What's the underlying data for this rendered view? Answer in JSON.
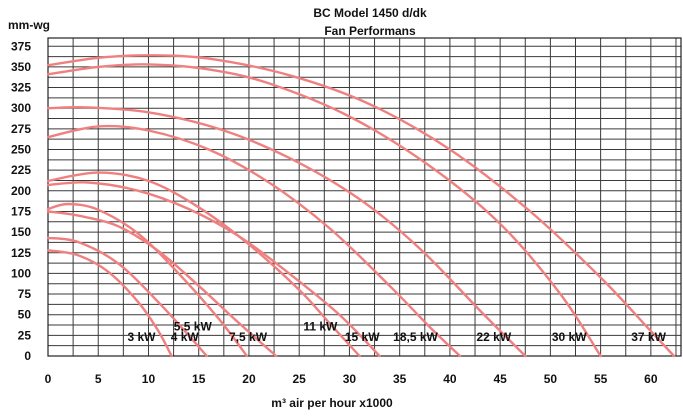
{
  "chart_data": {
    "type": "line",
    "title": "BC Model 1450 d/dk",
    "subtitle": "Fan Performans",
    "xlabel": "m³ air per hour x1000",
    "ylabel": "mm-wg",
    "xlim": [
      0,
      63
    ],
    "ylim": [
      0,
      385
    ],
    "x_ticks": [
      0,
      5,
      10,
      15,
      20,
      25,
      30,
      35,
      40,
      45,
      50,
      55,
      60
    ],
    "y_ticks": [
      0,
      25,
      50,
      75,
      100,
      125,
      150,
      175,
      200,
      225,
      250,
      275,
      300,
      325,
      350,
      375
    ],
    "grid": true,
    "curve_color": "#f08080",
    "series": [
      {
        "name": "3 kW",
        "points": [
          [
            0,
            128
          ],
          [
            3,
            122
          ],
          [
            6,
            102
          ],
          [
            9,
            65
          ],
          [
            11,
            30
          ],
          [
            12.3,
            0
          ]
        ]
      },
      {
        "name": "4 kW",
        "points": [
          [
            0,
            143
          ],
          [
            3,
            138
          ],
          [
            7,
            112
          ],
          [
            11,
            65
          ],
          [
            14,
            25
          ],
          [
            15.8,
            0
          ]
        ]
      },
      {
        "name": "5,5 kW",
        "points": [
          [
            0,
            178
          ],
          [
            2,
            184
          ],
          [
            5,
            177
          ],
          [
            9,
            148
          ],
          [
            13,
            100
          ],
          [
            17,
            45
          ],
          [
            19.8,
            0
          ]
        ]
      },
      {
        "name": "7,5 kW",
        "points": [
          [
            0,
            175
          ],
          [
            3,
            170
          ],
          [
            7,
            157
          ],
          [
            11,
            127
          ],
          [
            15,
            85
          ],
          [
            19,
            40
          ],
          [
            22.7,
            0
          ]
        ]
      },
      {
        "name": "11 kW",
        "points": [
          [
            0,
            212
          ],
          [
            5,
            222
          ],
          [
            10,
            212
          ],
          [
            15,
            180
          ],
          [
            20,
            135
          ],
          [
            25,
            80
          ],
          [
            28,
            40
          ],
          [
            31,
            0
          ]
        ]
      },
      {
        "name": "15 kW",
        "points": [
          [
            0,
            207
          ],
          [
            4,
            210
          ],
          [
            9,
            200
          ],
          [
            14,
            178
          ],
          [
            19,
            145
          ],
          [
            24,
            100
          ],
          [
            29,
            50
          ],
          [
            33,
            0
          ]
        ]
      },
      {
        "name": "18,5 kW",
        "points": [
          [
            0,
            265
          ],
          [
            5,
            278
          ],
          [
            10,
            273
          ],
          [
            16,
            250
          ],
          [
            22,
            210
          ],
          [
            28,
            155
          ],
          [
            34,
            85
          ],
          [
            38,
            35
          ],
          [
            41,
            0
          ]
        ]
      },
      {
        "name": "22 kW",
        "points": [
          [
            0,
            300
          ],
          [
            4,
            301
          ],
          [
            10,
            295
          ],
          [
            17,
            275
          ],
          [
            24,
            240
          ],
          [
            31,
            190
          ],
          [
            37,
            130
          ],
          [
            43,
            55
          ],
          [
            47.5,
            0
          ]
        ]
      },
      {
        "name": "30 kW",
        "points": [
          [
            0,
            341
          ],
          [
            5,
            350
          ],
          [
            10,
            353
          ],
          [
            16,
            347
          ],
          [
            22,
            330
          ],
          [
            30,
            290
          ],
          [
            38,
            230
          ],
          [
            45,
            160
          ],
          [
            51,
            75
          ],
          [
            55,
            0
          ]
        ]
      },
      {
        "name": "37 kW",
        "points": [
          [
            0,
            352
          ],
          [
            5,
            361
          ],
          [
            10,
            364
          ],
          [
            16,
            360
          ],
          [
            24,
            340
          ],
          [
            32,
            305
          ],
          [
            40,
            250
          ],
          [
            48,
            175
          ],
          [
            55,
            95
          ],
          [
            60,
            30
          ],
          [
            62.3,
            0
          ]
        ]
      }
    ]
  }
}
